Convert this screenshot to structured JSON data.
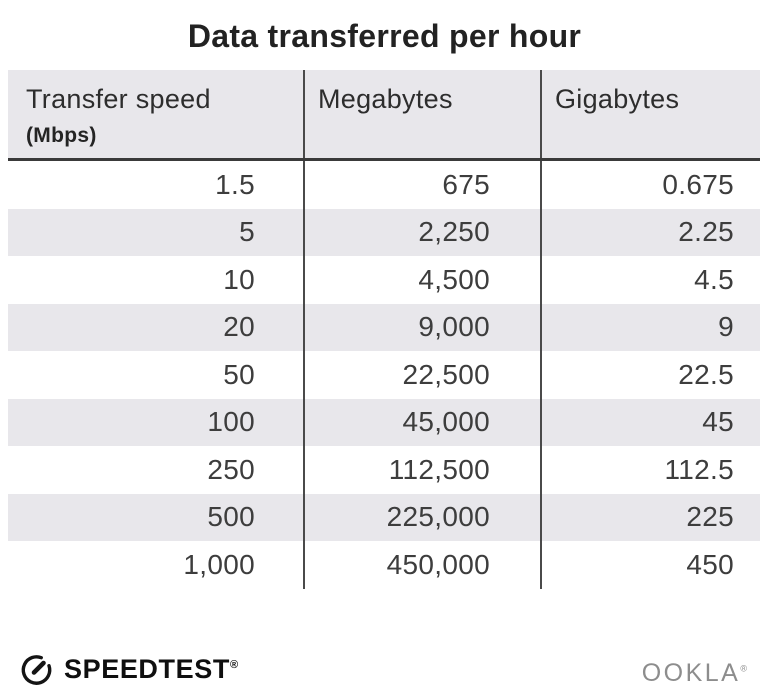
{
  "title": "Data transferred per hour",
  "table": {
    "columns": [
      {
        "label": "Transfer speed",
        "sublabel": "(Mbps)"
      },
      {
        "label": "Megabytes",
        "sublabel": ""
      },
      {
        "label": "Gigabytes",
        "sublabel": ""
      }
    ],
    "rows": [
      [
        "1.5",
        "675",
        "0.675"
      ],
      [
        "5",
        "2,250",
        "2.25"
      ],
      [
        "10",
        "4,500",
        "4.5"
      ],
      [
        "20",
        "9,000",
        "9"
      ],
      [
        "50",
        "22,500",
        "22.5"
      ],
      [
        "100",
        "45,000",
        "45"
      ],
      [
        "250",
        "112,500",
        "112.5"
      ],
      [
        "500",
        "225,000",
        "225"
      ],
      [
        "1,000",
        "450,000",
        "450"
      ]
    ]
  },
  "chart_data": {
    "type": "table",
    "title": "Data transferred per hour",
    "columns": [
      "Transfer speed (Mbps)",
      "Megabytes",
      "Gigabytes"
    ],
    "rows": [
      [
        1.5,
        675,
        0.675
      ],
      [
        5,
        2250,
        2.25
      ],
      [
        10,
        4500,
        4.5
      ],
      [
        20,
        9000,
        9
      ],
      [
        50,
        22500,
        22.5
      ],
      [
        100,
        45000,
        45
      ],
      [
        250,
        112500,
        112.5
      ],
      [
        500,
        225000,
        225
      ],
      [
        1000,
        450000,
        450
      ]
    ],
    "layout": {
      "striped_rows": true,
      "stripe_pattern": "even-rows-shaded",
      "column_dividers": true
    }
  },
  "footer": {
    "brand": "SPEEDTEST",
    "brand_trademark": "®",
    "company": "OOKLA",
    "company_trademark": "®"
  },
  "colors": {
    "header_bg": "#e8e7eb",
    "stripe_bg": "#e8e7eb",
    "divider": "#4a4a4a",
    "header_rule": "#3a3a3a",
    "body_text": "#3d3d3d",
    "title_text": "#222222",
    "brand_text": "#0f0f0f",
    "company_text": "#8d8d8d"
  }
}
